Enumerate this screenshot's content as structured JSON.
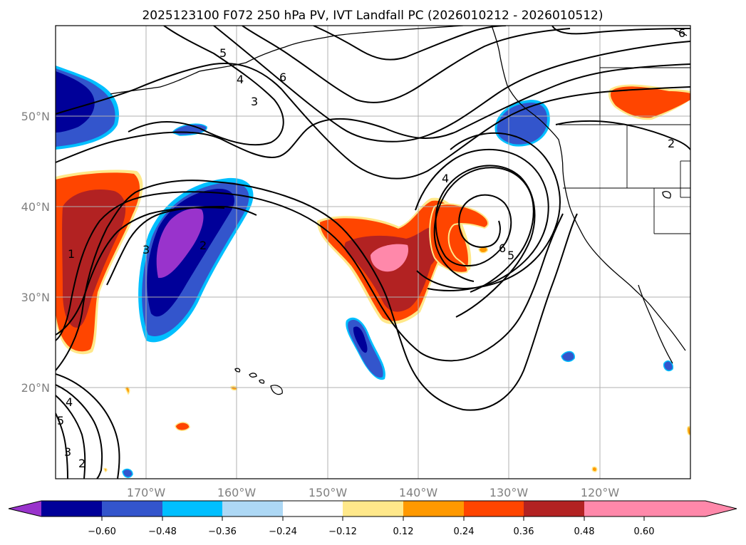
{
  "title": "2025123100 F072 250 hPa PV, IVT Landfall PC (2026010212 - 2026010512)",
  "lon_labels": [
    "170°W",
    "160°W",
    "150°W",
    "140°W",
    "130°W",
    "120°W"
  ],
  "lat_labels": [
    "50°N",
    "40°N",
    "30°N",
    "20°N"
  ],
  "map_extent": {
    "lon_min": -180,
    "lon_max": -110,
    "lat_min": 10,
    "lat_max": 60
  },
  "colorbar": {
    "ticks": [
      "−0.60",
      "−0.48",
      "−0.36",
      "−0.24",
      "−0.12",
      "0.12",
      "0.24",
      "0.36",
      "0.48",
      "0.60"
    ],
    "levels": [
      -0.6,
      -0.48,
      -0.36,
      -0.24,
      -0.12,
      0.12,
      0.24,
      0.36,
      0.48,
      0.6
    ],
    "colors": [
      "#9933cc",
      "#000099",
      "#3355cc",
      "#00bfff",
      "#add8f5",
      "#ffffff",
      "#ffe88a",
      "#ff9900",
      "#ff4500",
      "#b22222",
      "#ff88aa"
    ]
  },
  "contour_labels": [
    "6",
    "5",
    "4",
    "3",
    "6",
    "2",
    "4",
    "6",
    "5",
    "3",
    "2",
    "1",
    "4",
    "5",
    "3",
    "2"
  ]
}
